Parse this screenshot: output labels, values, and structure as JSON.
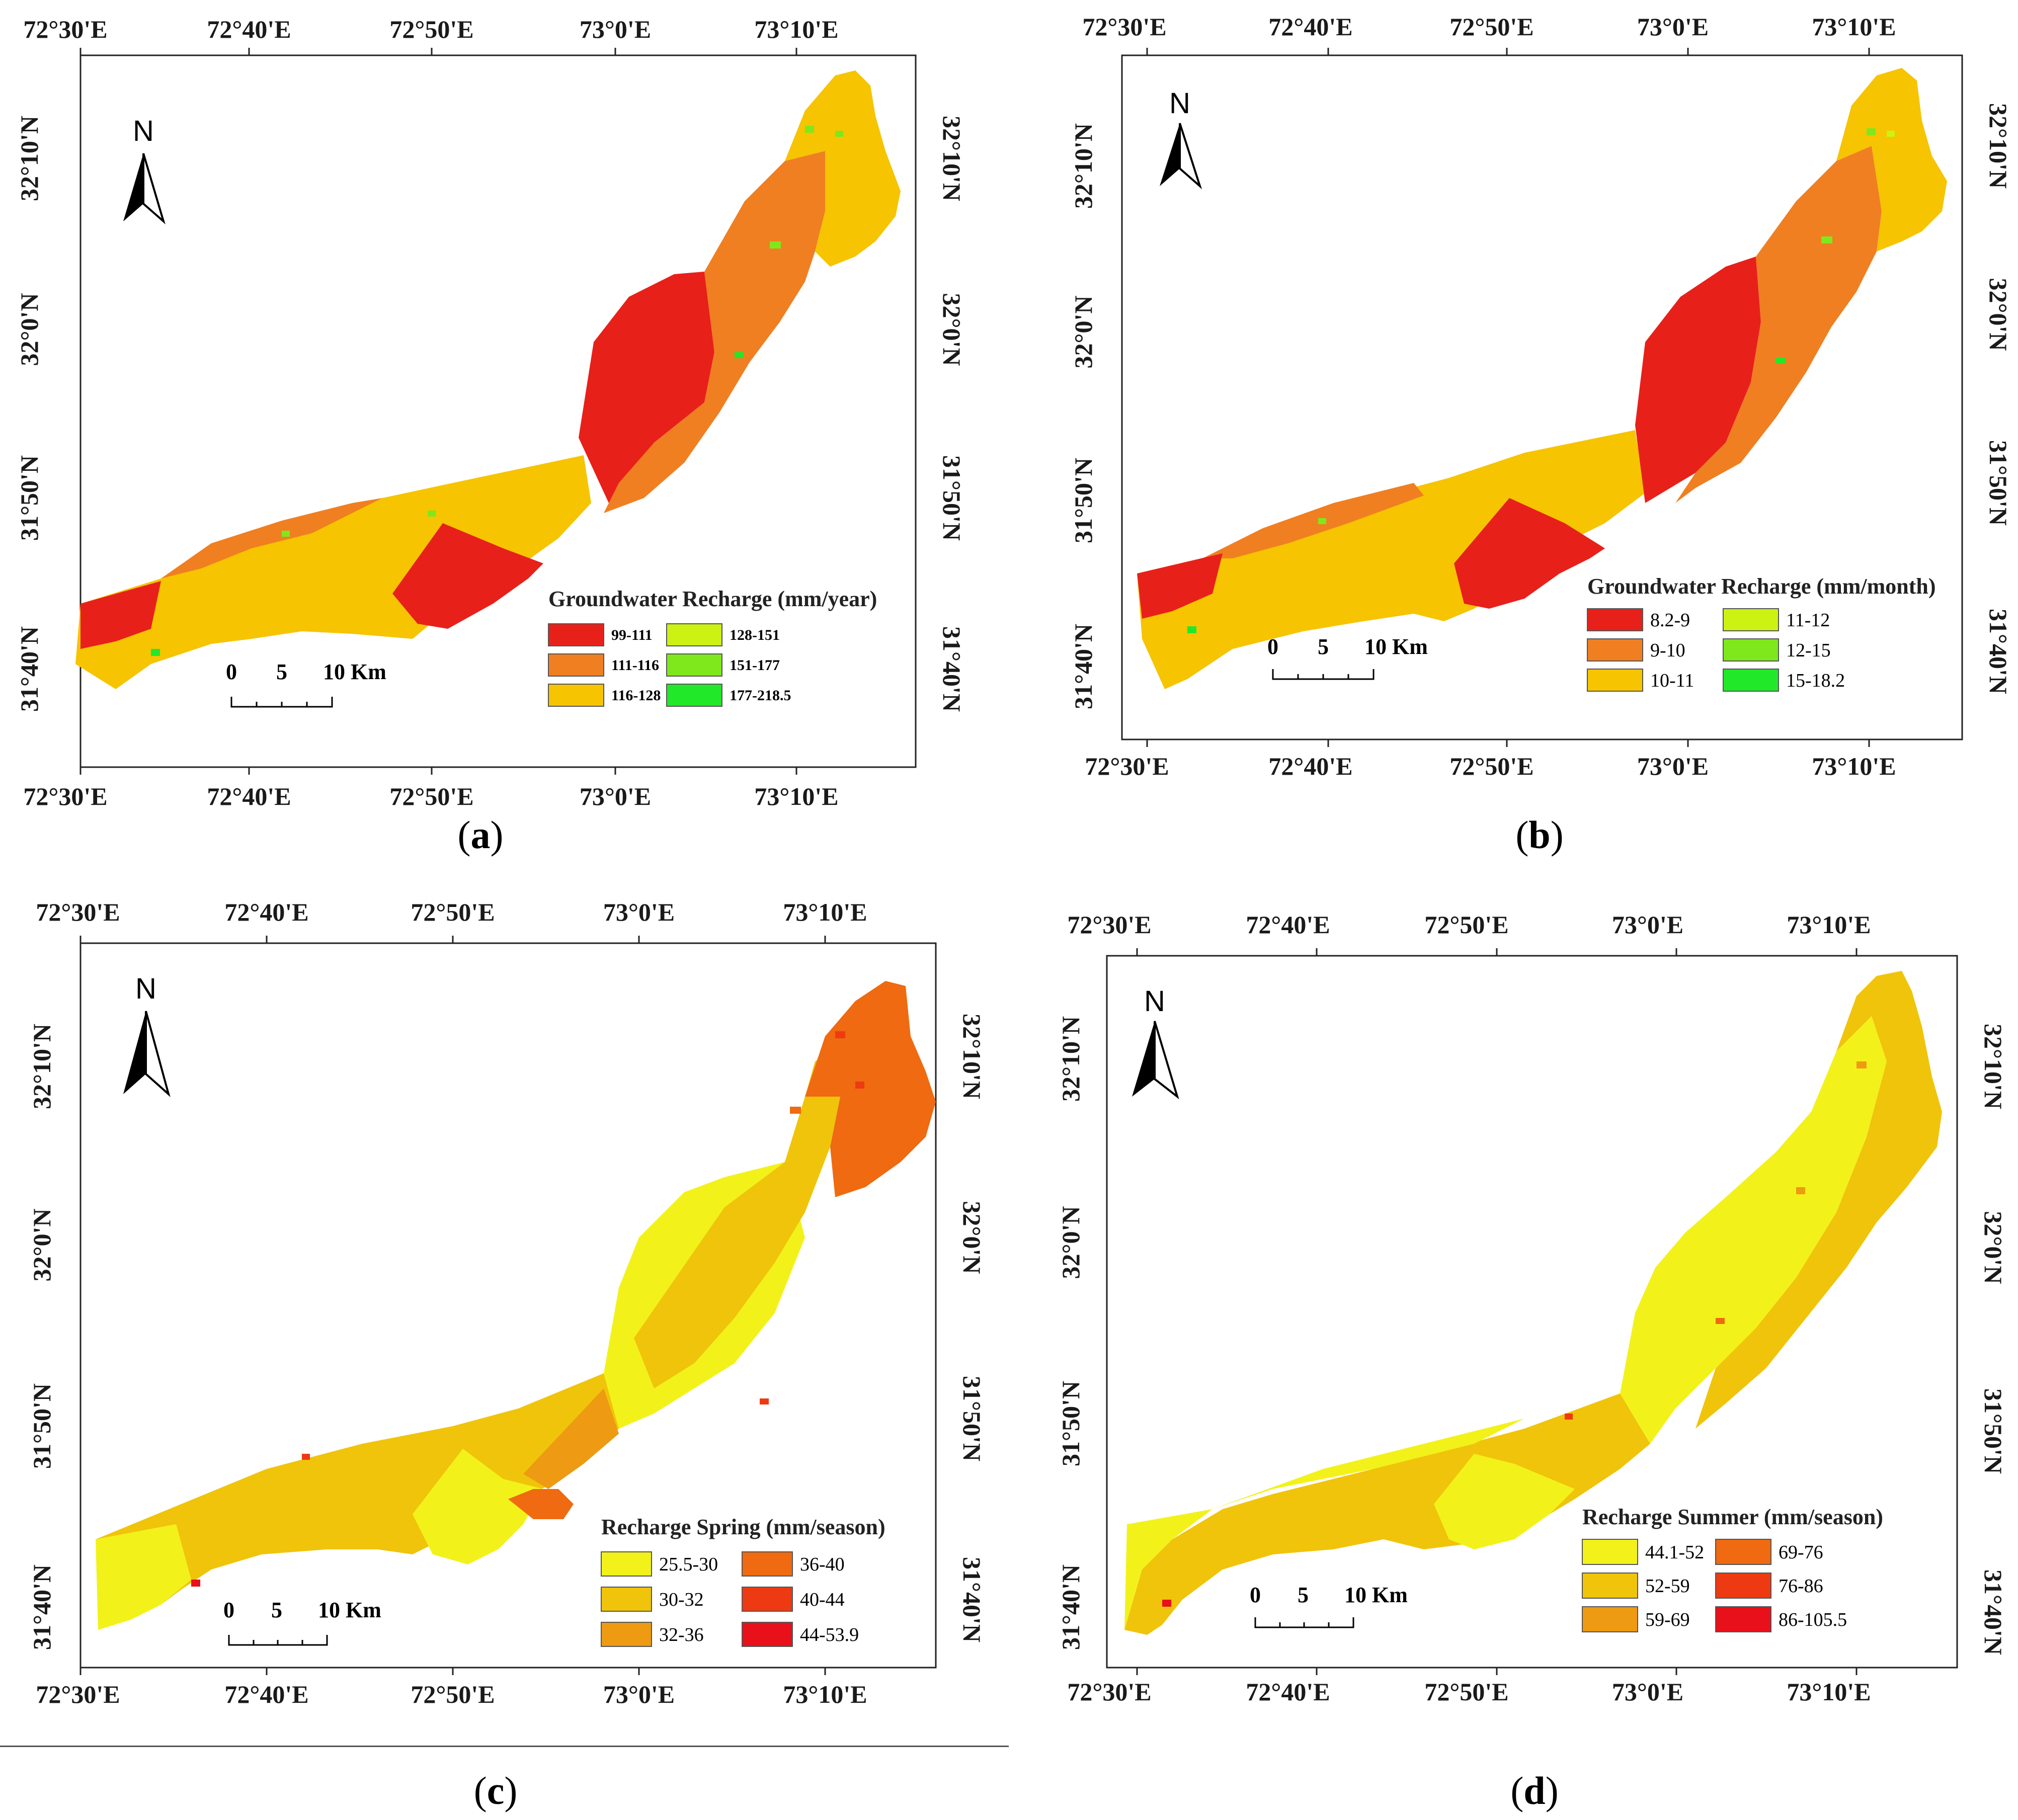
{
  "panels": {
    "a": {
      "caption_open": "(",
      "caption_letter": "a",
      "caption_close": ")",
      "north": "N",
      "lon_top": [
        "72°30'E",
        "72°40'E",
        "72°50'E",
        "73°0'E",
        "73°10'E"
      ],
      "lon_bottom": [
        "72°30'E",
        "72°40'E",
        "72°50'E",
        "73°0'E",
        "73°10'E"
      ],
      "lat_left": [
        "32°10'N",
        "32°0'N",
        "31°50'N",
        "31°40'N"
      ],
      "lat_right": [
        "32°10'N",
        "32°0'N",
        "31°50'N",
        "31°40'N"
      ],
      "scale": [
        "0",
        "5",
        "10 Km"
      ],
      "legend_title": "Groundwater Recharge (mm/year)",
      "legend": [
        {
          "label": "99-111",
          "color": "#e8201a"
        },
        {
          "label": "111-116",
          "color": "#f07f22"
        },
        {
          "label": "116-128",
          "color": "#f6c400"
        },
        {
          "label": "128-151",
          "color": "#ccf214"
        },
        {
          "label": "151-177",
          "color": "#7fe81c"
        },
        {
          "label": "177-218.5",
          "color": "#22e82a"
        }
      ]
    },
    "b": {
      "caption_open": "(",
      "caption_letter": "b",
      "caption_close": ")",
      "north": "N",
      "lon_top": [
        "72°30'E",
        "72°40'E",
        "72°50'E",
        "73°0'E",
        "73°10'E"
      ],
      "lon_bottom": [
        "72°30'E",
        "72°40'E",
        "72°50'E",
        "73°0'E",
        "73°10'E"
      ],
      "lat_left": [
        "32°10'N",
        "32°0'N",
        "31°50'N",
        "31°40'N"
      ],
      "lat_right": [
        "32°10'N",
        "32°0'N",
        "31°50'N",
        "31°40'N"
      ],
      "scale": [
        "0",
        "5",
        "10 Km"
      ],
      "legend_title": "Groundwater Recharge (mm/month)",
      "legend": [
        {
          "label": "8.2-9",
          "color": "#e8201a"
        },
        {
          "label": "9-10",
          "color": "#f07f22"
        },
        {
          "label": "10-11",
          "color": "#f6c400"
        },
        {
          "label": "11-12",
          "color": "#ccf214"
        },
        {
          "label": "12-15",
          "color": "#7fe81c"
        },
        {
          "label": "15-18.2",
          "color": "#22e82a"
        }
      ]
    },
    "c": {
      "caption_open": "(",
      "caption_letter": "c",
      "caption_close": ")",
      "north": "N",
      "lon_top": [
        "72°30'E",
        "72°40'E",
        "72°50'E",
        "73°0'E",
        "73°10'E"
      ],
      "lon_bottom": [
        "72°30'E",
        "72°40'E",
        "72°50'E",
        "73°0'E",
        "73°10'E"
      ],
      "lat_left": [
        "32°10'N",
        "32°0'N",
        "31°50'N",
        "31°40'N"
      ],
      "lat_right": [
        "32°10'N",
        "32°0'N",
        "31°50'N",
        "31°40'N"
      ],
      "scale": [
        "0",
        "5",
        "10 Km"
      ],
      "legend_title": "Recharge Spring (mm/season)",
      "legend": [
        {
          "label": "25.5-30",
          "color": "#f2f21a"
        },
        {
          "label": "30-32",
          "color": "#f0c40a"
        },
        {
          "label": "32-36",
          "color": "#ee9a12"
        },
        {
          "label": "36-40",
          "color": "#ef6a10"
        },
        {
          "label": "40-44",
          "color": "#ee3a12"
        },
        {
          "label": "44-53.9",
          "color": "#e8101a"
        }
      ]
    },
    "d": {
      "caption_open": "(",
      "caption_letter": "d",
      "caption_close": ")",
      "north": "N",
      "lon_top": [
        "72°30'E",
        "72°40'E",
        "72°50'E",
        "73°0'E",
        "73°10'E"
      ],
      "lon_bottom": [
        "72°30'E",
        "72°40'E",
        "72°50'E",
        "73°0'E",
        "73°10'E"
      ],
      "lat_left": [
        "32°10'N",
        "32°0'N",
        "31°50'N",
        "31°40'N"
      ],
      "lat_right": [
        "32°10'N",
        "32°0'N",
        "31°50'N",
        "31°40'N"
      ],
      "scale": [
        "0",
        "5",
        "10 Km"
      ],
      "legend_title": "Recharge Summer (mm/season)",
      "legend": [
        {
          "label": "44.1-52",
          "color": "#f2f21a"
        },
        {
          "label": "52-59",
          "color": "#f0c40a"
        },
        {
          "label": "59-69",
          "color": "#ee9a12"
        },
        {
          "label": "69-76",
          "color": "#ef6a10"
        },
        {
          "label": "76-86",
          "color": "#ee3a12"
        },
        {
          "label": "86-105.5",
          "color": "#e8101a"
        }
      ]
    }
  }
}
